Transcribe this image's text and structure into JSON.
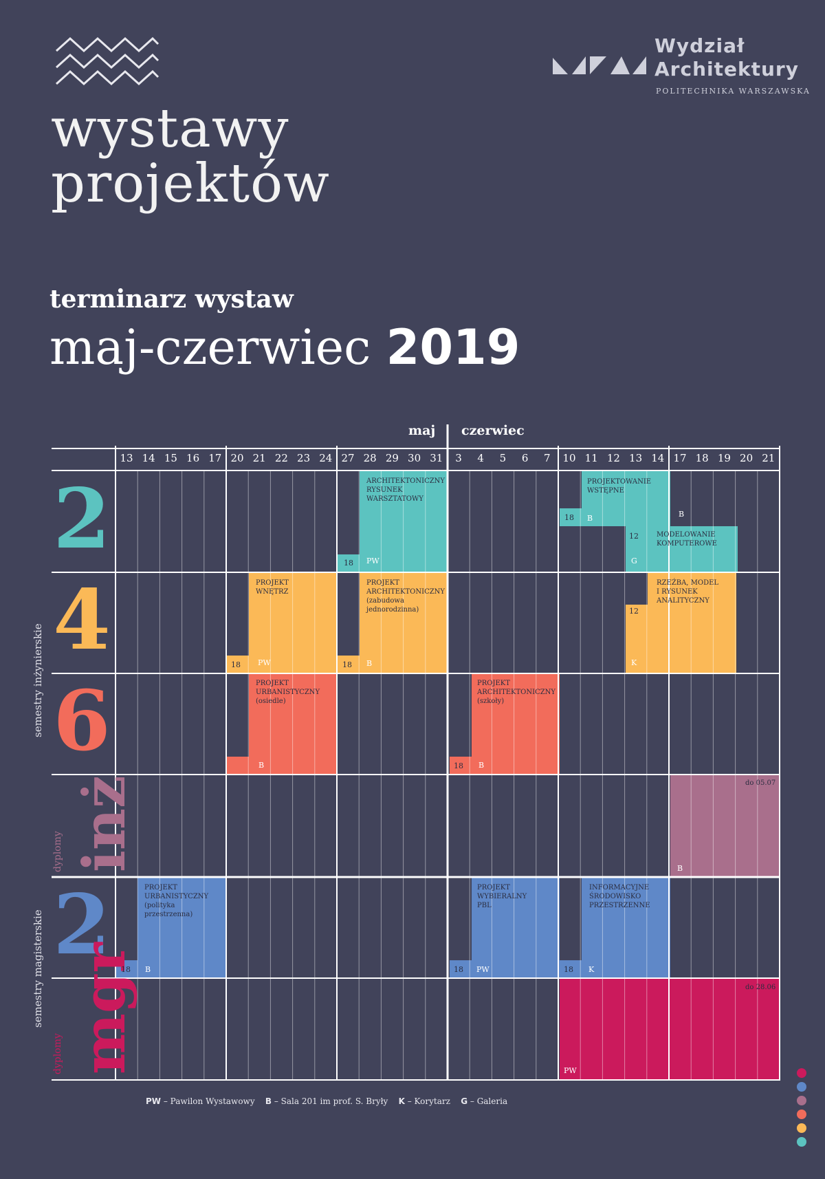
{
  "header": {
    "title_line1": "wystawy",
    "title_line2": "projektów",
    "logo_line1": "Wydział",
    "logo_line2": "Architektury",
    "logo_sub": "POLITECHNIKA WARSZAWSKA"
  },
  "subtitle": "terminarz wystaw",
  "period": {
    "text": "maj-czerwiec",
    "year": "2019"
  },
  "months": {
    "may": "maj",
    "june": "czerwiec"
  },
  "days": [
    "13",
    "14",
    "15",
    "16",
    "17",
    "20",
    "21",
    "22",
    "23",
    "24",
    "27",
    "28",
    "29",
    "30",
    "31",
    "3",
    "4",
    "5",
    "6",
    "7",
    "10",
    "11",
    "12",
    "13",
    "14",
    "17",
    "18",
    "19",
    "20",
    "21"
  ],
  "rows": [
    {
      "label": "2",
      "color": "#5cc3c0"
    },
    {
      "label": "4",
      "color": "#fbb957"
    },
    {
      "label": "6",
      "color": "#f26c5b"
    },
    {
      "label_small": "dyplomy",
      "label_big": "inż",
      "color": "#a96f8c"
    },
    {
      "label": "2",
      "color": "#5f88c8"
    },
    {
      "label_small": "dyplomy",
      "label_big": "mgr",
      "color": "#cb1a5c"
    }
  ],
  "group_labels": {
    "eng": "semestry inżynierskie",
    "mgr": "semestry magisterskie"
  },
  "events": [
    {
      "id": "e1",
      "color": "#5cc3c0",
      "title": "ARCHITEKTONICZNY\nRYSUNEK\nWARSZTATOWY",
      "num": "18",
      "tag": "PW"
    },
    {
      "id": "e2",
      "color": "#5cc3c0",
      "title": "PROJEKTOWANIE\nWSTĘPNE",
      "num": "18",
      "tag": "B"
    },
    {
      "id": "e3",
      "color": "#5cc3c0",
      "title": "MODELOWANIE\nKOMPUTEROWE",
      "num": "12",
      "tag": "G",
      "tag2": "B"
    },
    {
      "id": "e4",
      "color": "#fbb957",
      "title": "PROJEKT\nWNĘTRZ",
      "num": "18",
      "tag": "PW"
    },
    {
      "id": "e5",
      "color": "#fbb957",
      "title": "PROJEKT\nARCHITEKTONICZNY\n(zabudowa\njednorodzinna)",
      "num": "18",
      "tag": "B"
    },
    {
      "id": "e6",
      "color": "#fbb957",
      "title": "RZEŹBA, MODEL\nI RYSUNEK\nANALITYCZNY",
      "num": "12",
      "tag": "K"
    },
    {
      "id": "e7",
      "color": "#f26c5b",
      "title": "PROJEKT\nURBANISTYCZNY\n(osiedle)",
      "tag": "B"
    },
    {
      "id": "e8",
      "color": "#f26c5b",
      "title": "PROJEKT\nARCHITEKTONICZNY\n(szkoły)",
      "num": "18",
      "tag": "B"
    },
    {
      "id": "e9",
      "color": "#a96f8c",
      "note": "do 05.07",
      "tag": "B"
    },
    {
      "id": "e10",
      "color": "#5f88c8",
      "title": "PROJEKT\nURBANISTYCZNY\n(polityka\nprzestrzenna)",
      "num": "18",
      "tag": "B"
    },
    {
      "id": "e11",
      "color": "#5f88c8",
      "title": "PROJEKT\nWYBIERALNY\nPBL",
      "num": "18",
      "tag": "PW"
    },
    {
      "id": "e12",
      "color": "#5f88c8",
      "title": "INFORMACYJNE\nŚRODOWISKO\nPRZESTRZENNE",
      "num": "18",
      "tag": "K"
    },
    {
      "id": "e13",
      "color": "#cb1a5c",
      "note": "do 28.06",
      "tag": "PW"
    }
  ],
  "legend": [
    {
      "key": "PW",
      "text": " – Pawilon  Wystawowy"
    },
    {
      "key": "B",
      "text": " – Sala 201 im prof. S. Bryły"
    },
    {
      "key": "K",
      "text": " – Korytarz"
    },
    {
      "key": "G",
      "text": " – Galeria"
    }
  ],
  "dots": [
    "#cb1a5c",
    "#5f88c8",
    "#a96f8c",
    "#f26c5b",
    "#fbb957",
    "#5cc3c0"
  ]
}
